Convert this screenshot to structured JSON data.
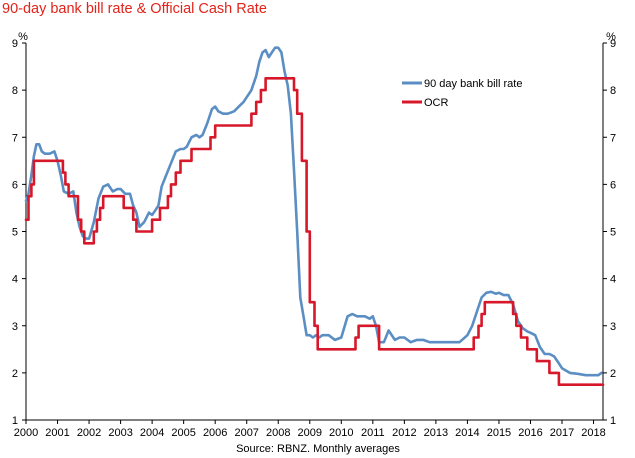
{
  "chart_data": {
    "type": "line",
    "title": "90-day bank bill rate & Official Cash Rate",
    "source": "Source: RBNZ. Monthly averages",
    "y_unit_left": "%",
    "y_unit_right": "%",
    "ylim": [
      1,
      9
    ],
    "y_ticks": [
      "1",
      "2",
      "3",
      "4",
      "5",
      "6",
      "7",
      "8",
      "9"
    ],
    "xlim": [
      2000,
      2018.3
    ],
    "x_ticks": [
      "2000",
      "2001",
      "2002",
      "2003",
      "2004",
      "2005",
      "2006",
      "2007",
      "2008",
      "2009",
      "2010",
      "2011",
      "2012",
      "2013",
      "2014",
      "2015",
      "2016",
      "2017",
      "2018"
    ],
    "grid": false,
    "legend_position": "top-right",
    "series": [
      {
        "name": "90 day bank bill rate",
        "color": "#5b8ec3",
        "x": [
          2000.0,
          2000.08,
          2000.17,
          2000.25,
          2000.33,
          2000.42,
          2000.5,
          2000.6,
          2000.75,
          2000.9,
          2001.0,
          2001.1,
          2001.2,
          2001.35,
          2001.5,
          2001.6,
          2001.7,
          2001.8,
          2001.9,
          2002.0,
          2002.15,
          2002.3,
          2002.45,
          2002.6,
          2002.75,
          2002.9,
          2003.0,
          2003.15,
          2003.3,
          2003.4,
          2003.5,
          2003.6,
          2003.75,
          2003.9,
          2004.0,
          2004.1,
          2004.2,
          2004.3,
          2004.45,
          2004.6,
          2004.75,
          2004.9,
          2005.0,
          2005.1,
          2005.25,
          2005.4,
          2005.5,
          2005.6,
          2005.75,
          2005.9,
          2006.0,
          2006.1,
          2006.25,
          2006.4,
          2006.6,
          2006.75,
          2006.9,
          2007.0,
          2007.15,
          2007.3,
          2007.4,
          2007.5,
          2007.6,
          2007.7,
          2007.8,
          2007.9,
          2008.0,
          2008.1,
          2008.2,
          2008.3,
          2008.4,
          2008.5,
          2008.6,
          2008.7,
          2008.8,
          2008.9,
          2009.0,
          2009.1,
          2009.2,
          2009.3,
          2009.4,
          2009.6,
          2009.8,
          2010.0,
          2010.2,
          2010.35,
          2010.5,
          2010.6,
          2010.75,
          2010.9,
          2011.0,
          2011.1,
          2011.2,
          2011.35,
          2011.5,
          2011.7,
          2011.85,
          2012.0,
          2012.2,
          2012.4,
          2012.6,
          2012.8,
          2013.0,
          2013.25,
          2013.5,
          2013.75,
          2014.0,
          2014.15,
          2014.3,
          2014.45,
          2014.6,
          2014.75,
          2014.9,
          2015.0,
          2015.15,
          2015.3,
          2015.45,
          2015.6,
          2015.75,
          2015.9,
          2016.0,
          2016.15,
          2016.3,
          2016.45,
          2016.6,
          2016.75,
          2016.9,
          2017.0,
          2017.25,
          2017.5,
          2017.75,
          2018.0,
          2018.15,
          2018.25
        ],
        "values": [
          5.65,
          5.8,
          6.2,
          6.6,
          6.85,
          6.85,
          6.7,
          6.65,
          6.65,
          6.7,
          6.5,
          6.2,
          5.85,
          5.8,
          5.85,
          5.4,
          5.1,
          4.9,
          4.85,
          4.85,
          5.2,
          5.7,
          5.95,
          6.0,
          5.85,
          5.9,
          5.9,
          5.8,
          5.8,
          5.55,
          5.4,
          5.1,
          5.2,
          5.4,
          5.35,
          5.45,
          5.55,
          5.95,
          6.2,
          6.45,
          6.7,
          6.75,
          6.75,
          6.8,
          7.0,
          7.05,
          7.0,
          7.05,
          7.3,
          7.6,
          7.65,
          7.55,
          7.5,
          7.5,
          7.55,
          7.65,
          7.75,
          7.85,
          8.0,
          8.3,
          8.6,
          8.8,
          8.85,
          8.7,
          8.8,
          8.9,
          8.9,
          8.8,
          8.4,
          8.1,
          7.5,
          6.3,
          5.0,
          3.6,
          3.2,
          2.8,
          2.8,
          2.75,
          2.8,
          2.75,
          2.8,
          2.8,
          2.7,
          2.75,
          3.2,
          3.25,
          3.2,
          3.2,
          3.2,
          3.15,
          3.2,
          3.0,
          2.65,
          2.65,
          2.9,
          2.7,
          2.75,
          2.75,
          2.65,
          2.7,
          2.7,
          2.65,
          2.65,
          2.65,
          2.65,
          2.65,
          2.8,
          3.0,
          3.3,
          3.6,
          3.7,
          3.72,
          3.68,
          3.7,
          3.65,
          3.65,
          3.45,
          3.1,
          2.95,
          2.88,
          2.85,
          2.8,
          2.55,
          2.4,
          2.4,
          2.35,
          2.2,
          2.1,
          2.0,
          1.98,
          1.95,
          1.95,
          1.95,
          2.0
        ],
        "width": 2.6
      },
      {
        "name": "OCR",
        "color": "#d7182a",
        "steps": [
          [
            2000.0,
            5.25
          ],
          [
            2000.08,
            5.75
          ],
          [
            2000.17,
            6.0
          ],
          [
            2000.25,
            6.5
          ],
          [
            2000.5,
            6.5
          ],
          [
            2001.17,
            6.25
          ],
          [
            2001.25,
            6.0
          ],
          [
            2001.35,
            5.75
          ],
          [
            2001.65,
            5.25
          ],
          [
            2001.75,
            5.0
          ],
          [
            2001.85,
            4.75
          ],
          [
            2002.15,
            5.0
          ],
          [
            2002.25,
            5.25
          ],
          [
            2002.35,
            5.5
          ],
          [
            2002.45,
            5.75
          ],
          [
            2003.1,
            5.5
          ],
          [
            2003.4,
            5.25
          ],
          [
            2003.5,
            5.0
          ],
          [
            2004.0,
            5.25
          ],
          [
            2004.25,
            5.5
          ],
          [
            2004.5,
            5.75
          ],
          [
            2004.6,
            6.0
          ],
          [
            2004.75,
            6.25
          ],
          [
            2004.9,
            6.5
          ],
          [
            2005.25,
            6.75
          ],
          [
            2005.85,
            7.0
          ],
          [
            2006.0,
            7.25
          ],
          [
            2007.15,
            7.5
          ],
          [
            2007.3,
            7.75
          ],
          [
            2007.45,
            8.0
          ],
          [
            2007.6,
            8.25
          ],
          [
            2008.5,
            8.0
          ],
          [
            2008.6,
            7.5
          ],
          [
            2008.75,
            6.5
          ],
          [
            2008.9,
            5.0
          ],
          [
            2009.0,
            3.5
          ],
          [
            2009.15,
            3.0
          ],
          [
            2009.25,
            2.5
          ],
          [
            2010.45,
            2.75
          ],
          [
            2010.55,
            3.0
          ],
          [
            2011.2,
            2.5
          ],
          [
            2014.2,
            2.75
          ],
          [
            2014.35,
            3.0
          ],
          [
            2014.45,
            3.25
          ],
          [
            2014.55,
            3.5
          ],
          [
            2015.45,
            3.25
          ],
          [
            2015.55,
            3.0
          ],
          [
            2015.7,
            2.75
          ],
          [
            2015.9,
            2.5
          ],
          [
            2016.2,
            2.25
          ],
          [
            2016.6,
            2.0
          ],
          [
            2016.9,
            1.75
          ],
          [
            2018.3,
            1.75
          ]
        ],
        "width": 2.6
      }
    ]
  }
}
